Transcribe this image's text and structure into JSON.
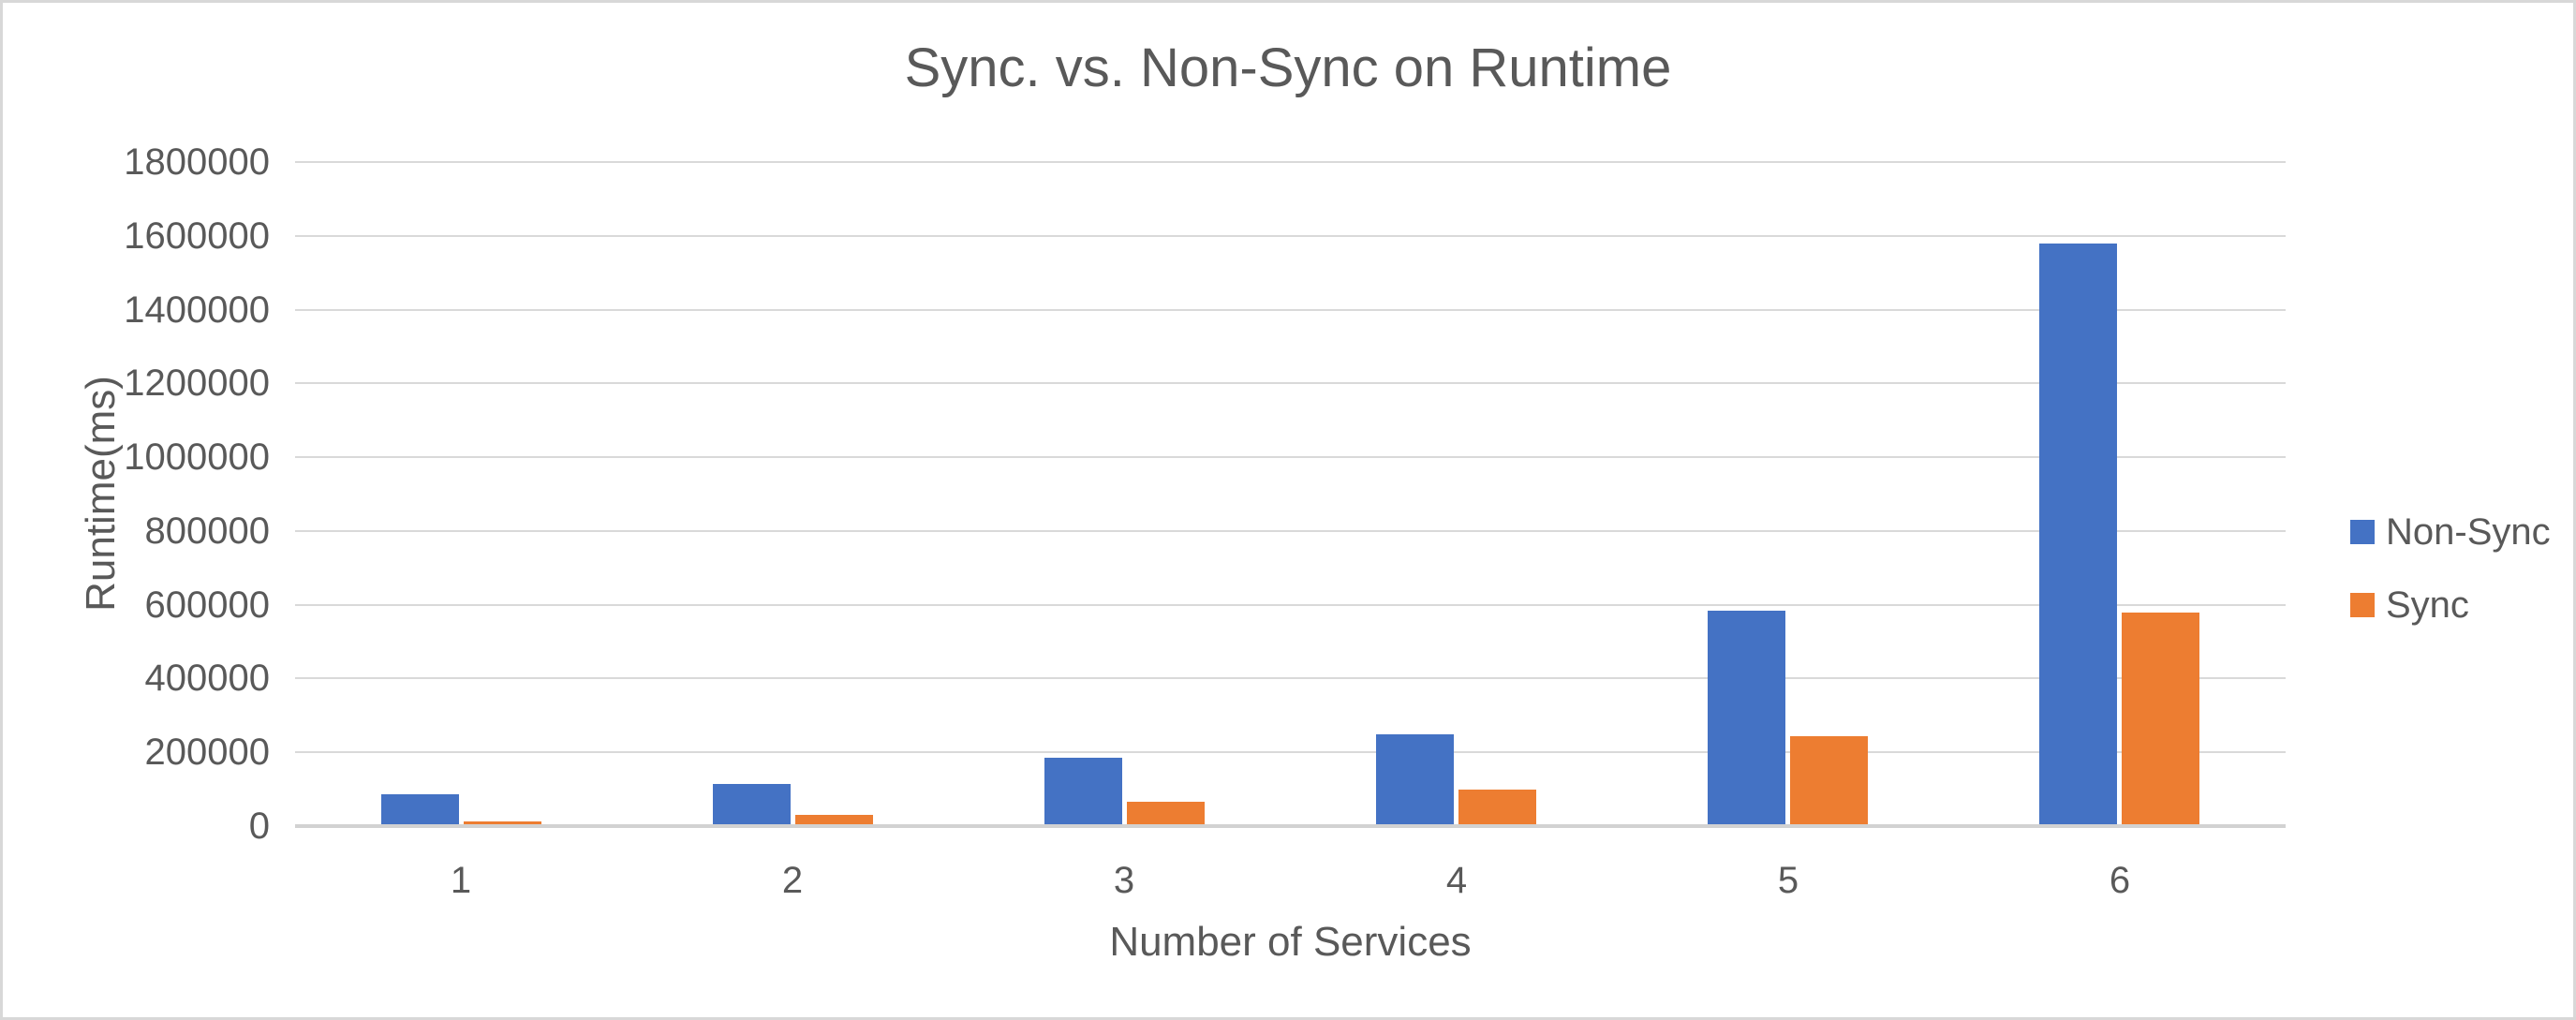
{
  "chart_data": {
    "type": "bar",
    "title": "Sync. vs. Non-Sync on Runtime",
    "xlabel": "Number of Services",
    "ylabel": "Runtime(ms)",
    "categories": [
      "1",
      "2",
      "3",
      "4",
      "5",
      "6"
    ],
    "series": [
      {
        "name": "Non-Sync",
        "color": "#4472C4",
        "values": [
          87000,
          115000,
          185000,
          250000,
          585000,
          1580000
        ]
      },
      {
        "name": "Sync",
        "color": "#ED7D31",
        "values": [
          13000,
          30000,
          67000,
          100000,
          243000,
          580000
        ]
      }
    ],
    "ylim": [
      0,
      1800000
    ],
    "ytick_step": 200000,
    "yticks": [
      "0",
      "200000",
      "400000",
      "600000",
      "800000",
      "1000000",
      "1200000",
      "1400000",
      "1600000",
      "1800000"
    ],
    "grid": "horizontal-only",
    "legend_position": "right",
    "colors": {
      "text": "#595959",
      "gridline": "#D9D9D9",
      "axis_line": "#D2D2D2",
      "background": "#FFFFFF",
      "frame_border": "#D8D8D8"
    }
  }
}
